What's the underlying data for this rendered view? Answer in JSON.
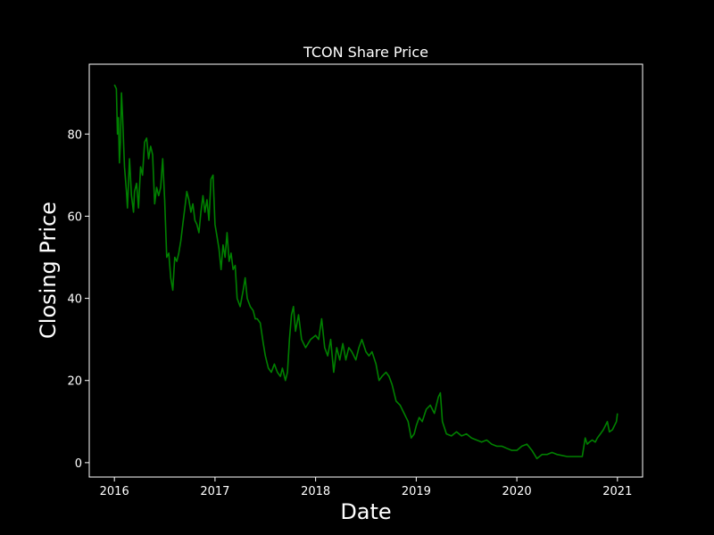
{
  "chart_data": {
    "type": "line",
    "title": "TCON Share Price",
    "xlabel": "Date",
    "ylabel": "Closing Price",
    "x_ticks": [
      "2016",
      "2017",
      "2018",
      "2019",
      "2020",
      "2021"
    ],
    "y_ticks": [
      0,
      20,
      40,
      60,
      80
    ],
    "xlim": [
      2015.75,
      2021.25
    ],
    "ylim": [
      -3.5,
      97
    ],
    "grid": false,
    "legend": "none",
    "colors": {
      "background": "#000000",
      "text": "#ffffff",
      "line": "#008000",
      "frame": "#ffffff"
    },
    "series": [
      {
        "x": [
          2016.0,
          2016.02,
          2016.03,
          2016.04,
          2016.05,
          2016.06,
          2016.07,
          2016.08,
          2016.1,
          2016.12,
          2016.13,
          2016.15,
          2016.17,
          2016.19,
          2016.2,
          2016.22,
          2016.24,
          2016.26,
          2016.28,
          2016.3,
          2016.32,
          2016.34,
          2016.36,
          2016.38,
          2016.4,
          2016.42,
          2016.44,
          2016.46,
          2016.48,
          2016.5,
          2016.52,
          2016.54,
          2016.56,
          2016.58,
          2016.6,
          2016.62,
          2016.64,
          2016.66,
          2016.68,
          2016.7,
          2016.72,
          2016.74,
          2016.76,
          2016.78,
          2016.8,
          2016.82,
          2016.84,
          2016.86,
          2016.88,
          2016.9,
          2016.92,
          2016.94,
          2016.96,
          2016.98,
          2017.0,
          2017.02,
          2017.04,
          2017.06,
          2017.08,
          2017.1,
          2017.12,
          2017.14,
          2017.16,
          2017.18,
          2017.2,
          2017.22,
          2017.25,
          2017.28,
          2017.3,
          2017.32,
          2017.35,
          2017.38,
          2017.4,
          2017.42,
          2017.45,
          2017.48,
          2017.5,
          2017.53,
          2017.56,
          2017.59,
          2017.62,
          2017.65,
          2017.67,
          2017.7,
          2017.72,
          2017.74,
          2017.76,
          2017.78,
          2017.8,
          2017.83,
          2017.86,
          2017.9,
          2017.95,
          2018.0,
          2018.03,
          2018.06,
          2018.09,
          2018.12,
          2018.15,
          2018.18,
          2018.21,
          2018.24,
          2018.27,
          2018.3,
          2018.33,
          2018.36,
          2018.4,
          2018.43,
          2018.46,
          2018.5,
          2018.53,
          2018.56,
          2018.6,
          2018.63,
          2018.66,
          2018.7,
          2018.73,
          2018.76,
          2018.8,
          2018.84,
          2018.88,
          2018.92,
          2018.95,
          2018.98,
          2019.0,
          2019.03,
          2019.06,
          2019.1,
          2019.14,
          2019.18,
          2019.22,
          2019.24,
          2019.26,
          2019.3,
          2019.35,
          2019.4,
          2019.45,
          2019.5,
          2019.55,
          2019.6,
          2019.65,
          2019.7,
          2019.75,
          2019.8,
          2019.85,
          2019.9,
          2019.95,
          2020.0,
          2020.05,
          2020.1,
          2020.15,
          2020.2,
          2020.25,
          2020.3,
          2020.35,
          2020.4,
          2020.5,
          2020.6,
          2020.65,
          2020.68,
          2020.7,
          2020.72,
          2020.75,
          2020.78,
          2020.8,
          2020.83,
          2020.86,
          2020.88,
          2020.9,
          2020.92,
          2020.95,
          2020.97,
          2020.99,
          2021.0
        ],
        "y": [
          92,
          91,
          80,
          84,
          73,
          78,
          90,
          85,
          72,
          66,
          62,
          74,
          65,
          61,
          66,
          68,
          62,
          72,
          70,
          78,
          79,
          74,
          77,
          75,
          63,
          67,
          65,
          67,
          74,
          64,
          50,
          51,
          45,
          42,
          50,
          49,
          51,
          54,
          58,
          62,
          66,
          64,
          61,
          63,
          59,
          58,
          56,
          61,
          65,
          61,
          64,
          59,
          69,
          70,
          58,
          55,
          52,
          47,
          53,
          50,
          56,
          49,
          51,
          47,
          48,
          40,
          38,
          42,
          45,
          40,
          38,
          37,
          35,
          35,
          34,
          29,
          26,
          23,
          22,
          24,
          22,
          21,
          23,
          20,
          22,
          30,
          36,
          38,
          32,
          36,
          30,
          28,
          30,
          31,
          30,
          35,
          28,
          26,
          30,
          22,
          28,
          25,
          29,
          25,
          28,
          27,
          25,
          28,
          30,
          27,
          26,
          27,
          24,
          20,
          21,
          22,
          21,
          19,
          15,
          14,
          12,
          10,
          6,
          7,
          9,
          11,
          10,
          13,
          14,
          12,
          16,
          17,
          10,
          7,
          6.5,
          7.5,
          6.5,
          7,
          6,
          5.5,
          5,
          5.5,
          4.5,
          4,
          4,
          3.5,
          3,
          3,
          4,
          4.5,
          3,
          1,
          2,
          2,
          2.5,
          2,
          1.5,
          1.5,
          1.5,
          6,
          4.5,
          5,
          5.5,
          5,
          6,
          7,
          8,
          9,
          10,
          7.5,
          8,
          9,
          10,
          12
        ]
      }
    ]
  }
}
